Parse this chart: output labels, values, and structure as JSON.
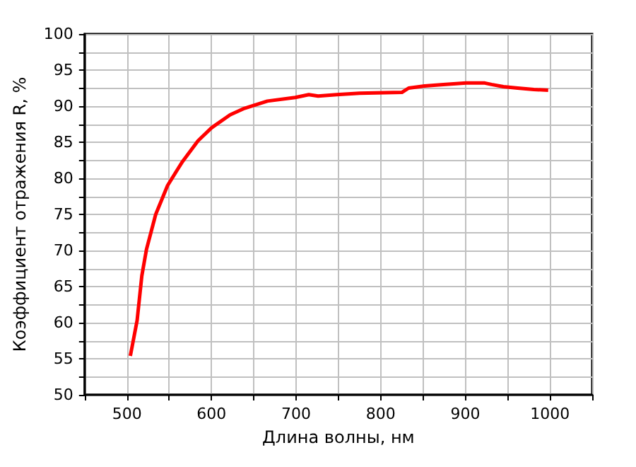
{
  "chart_data": {
    "type": "line",
    "xlabel": "Длина волны, нм",
    "ylabel": "Коэффициент отражения R, %",
    "x": [
      504,
      512,
      517.6,
      523,
      534,
      548,
      565,
      584,
      600,
      622,
      639,
      666,
      699,
      715,
      726,
      748,
      775,
      825,
      833,
      852,
      874,
      901,
      923,
      931,
      945,
      962,
      981,
      998
    ],
    "series": [
      {
        "color": "#ff0000",
        "values": [
          55.4,
          60.3,
          66.5,
          70.1,
          75.0,
          79.0,
          82.2,
          85.2,
          87.0,
          88.8,
          89.7,
          90.7,
          91.2,
          91.6,
          91.4,
          91.6,
          91.8,
          91.9,
          92.5,
          92.8,
          93.0,
          93.2,
          93.2,
          93.0,
          92.7,
          92.5,
          92.3,
          92.2
        ]
      }
    ],
    "xlim": [
      450,
      1050
    ],
    "xticks": [
      {
        "value": 450,
        "label": null
      },
      500,
      {
        "value": 550,
        "label": null
      },
      600,
      {
        "value": 650,
        "label": null
      },
      700,
      {
        "value": 750,
        "label": null
      },
      800,
      {
        "value": 850,
        "label": null
      },
      900,
      {
        "value": 950,
        "label": null
      },
      1000,
      {
        "value": 1050,
        "label": null
      }
    ],
    "ylim": [
      50,
      100
    ],
    "yticks": [
      50,
      {
        "value": 52.5,
        "label": null
      },
      55,
      {
        "value": 57.5,
        "label": null
      },
      60,
      {
        "value": 62.5,
        "label": null
      },
      65,
      {
        "value": 67.5,
        "label": null
      },
      70,
      {
        "value": 72.5,
        "label": null
      },
      75,
      {
        "value": 77.5,
        "label": null
      },
      80,
      {
        "value": 82.5,
        "label": null
      },
      85,
      {
        "value": 87.5,
        "label": null
      },
      90,
      {
        "value": 92.5,
        "label": null
      },
      95,
      {
        "value": 97.5,
        "label": null
      },
      100
    ],
    "grid": true,
    "marker": "none",
    "line_style": "solid"
  }
}
